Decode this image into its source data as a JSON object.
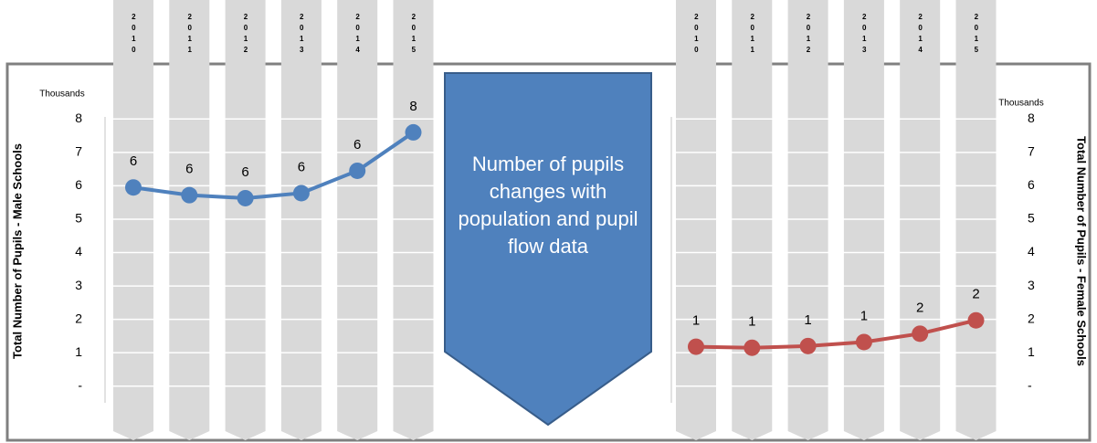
{
  "chart_data": [
    {
      "type": "line",
      "unit_label": "Thousands",
      "ylabel": "Total Number of Pupils - Male Schools",
      "categories": [
        "2010",
        "2011",
        "2012",
        "2013",
        "2014",
        "2015"
      ],
      "series": [
        {
          "color": "#4f81bd",
          "values": [
            5.95,
            5.72,
            5.63,
            5.78,
            6.45,
            7.6
          ],
          "value_labels": [
            "6",
            "6",
            "6",
            "6",
            "6",
            "8"
          ]
        }
      ],
      "ylim": [
        -0.5,
        8.2
      ],
      "yticks": [
        {
          "value": 0,
          "label": "-"
        },
        1,
        2,
        3,
        4,
        5,
        6,
        7,
        8
      ],
      "grid": true
    },
    {
      "type": "line",
      "unit_label": "Thousands",
      "ylabel": "Total Number of Pupils - Female Schools",
      "categories": [
        "2010",
        "2011",
        "2012",
        "2013",
        "2014",
        "2015"
      ],
      "series": [
        {
          "color": "#c0504d",
          "values": [
            1.18,
            1.15,
            1.2,
            1.32,
            1.57,
            1.97
          ],
          "value_labels": [
            "1",
            "1",
            "1",
            "1",
            "2",
            "2"
          ]
        }
      ],
      "ylim": [
        -0.5,
        8.2
      ],
      "yticks": [
        {
          "value": 0,
          "label": "-"
        },
        1,
        2,
        3,
        4,
        5,
        6,
        7,
        8
      ],
      "grid": true
    }
  ],
  "callout": "Number of pupils changes with population and pupil flow data"
}
